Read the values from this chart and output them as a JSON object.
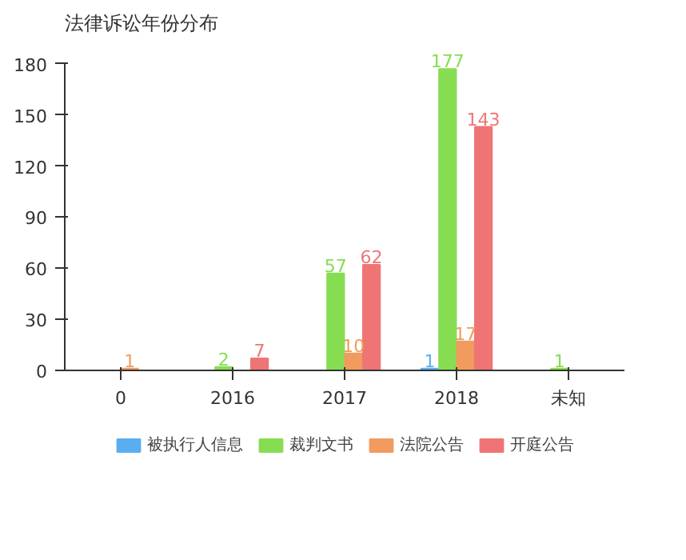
{
  "chart_data": {
    "type": "bar",
    "title": "法律诉讼年份分布",
    "categories": [
      "0",
      "2016",
      "2017",
      "2018",
      "未知"
    ],
    "series": [
      {
        "name": "被执行人信息",
        "color": "#5aaef0",
        "values": [
          null,
          null,
          null,
          1,
          null
        ]
      },
      {
        "name": "裁判文书",
        "color": "#87dd52",
        "values": [
          null,
          2,
          57,
          177,
          1
        ]
      },
      {
        "name": "法院公告",
        "color": "#f19b5e",
        "values": [
          1,
          null,
          10,
          17,
          null
        ]
      },
      {
        "name": "开庭公告",
        "color": "#ef7575",
        "values": [
          null,
          7,
          62,
          143,
          null
        ]
      }
    ],
    "ylim": [
      0,
      180
    ],
    "yticks": [
      0,
      30,
      60,
      90,
      120,
      150,
      180
    ],
    "grid": false,
    "legend": "bottom",
    "data_labels": true
  }
}
